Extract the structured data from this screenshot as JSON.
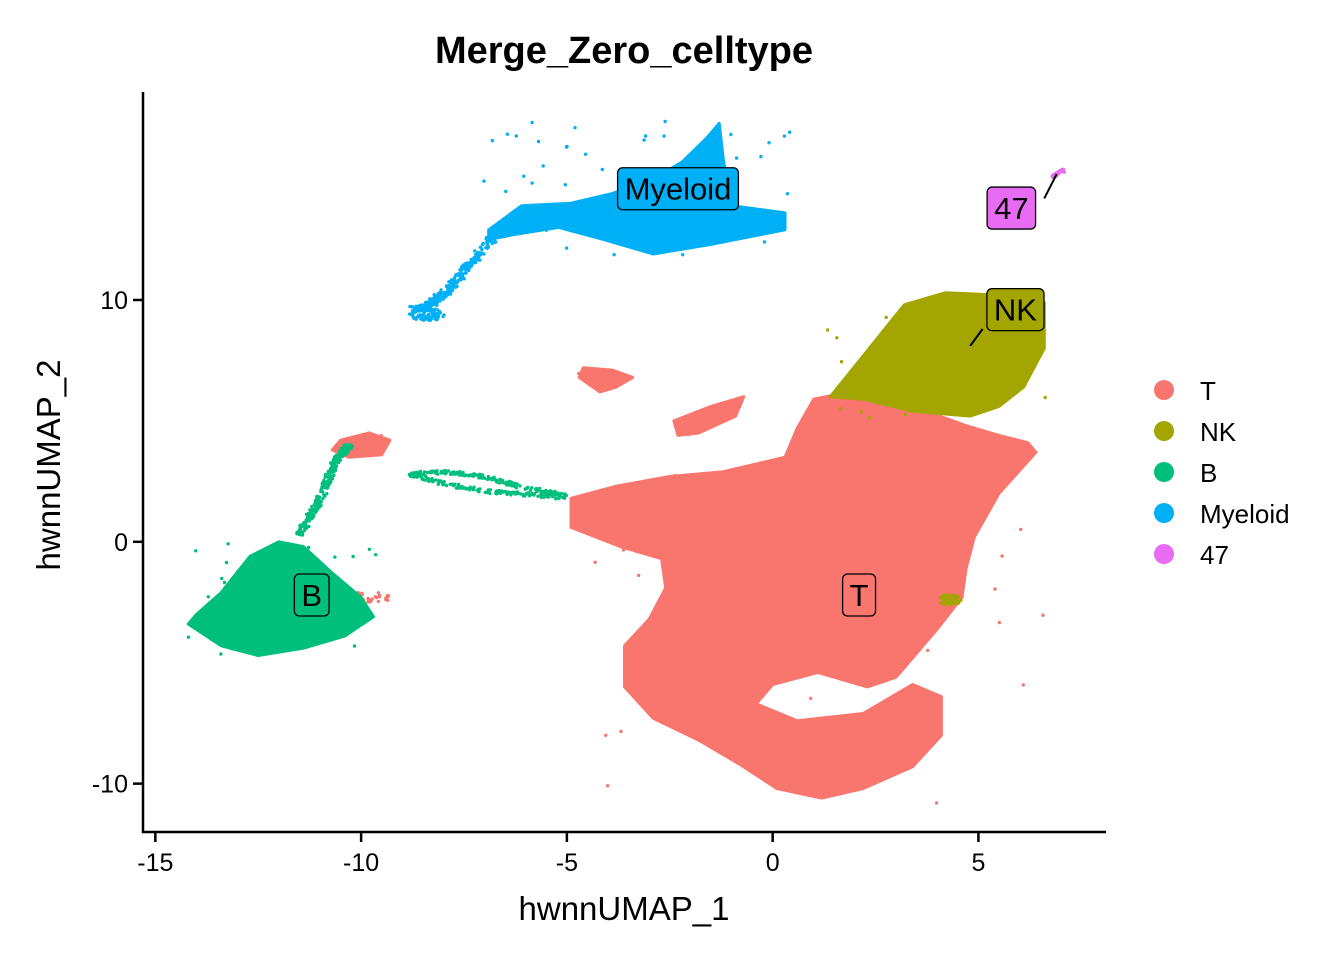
{
  "chart_data": {
    "type": "scatter",
    "title": "Merge_Zero_celltype",
    "xlabel": "hwnnUMAP_1",
    "ylabel": "hwnnUMAP_2",
    "xlim": [
      -15.3,
      8.1
    ],
    "ylim": [
      -12.0,
      18.6
    ],
    "xticks": [
      -15,
      -10,
      -5,
      0,
      5
    ],
    "yticks": [
      -10,
      0,
      10
    ],
    "grid": false,
    "legend_position": "right",
    "series": [
      {
        "name": "T",
        "color": "#F8766D"
      },
      {
        "name": "NK",
        "color": "#A3A500"
      },
      {
        "name": "B",
        "color": "#00BF7D"
      },
      {
        "name": "Myeloid",
        "color": "#00B0F6"
      },
      {
        "name": "47",
        "color": "#E76BF3"
      }
    ],
    "regions": [
      {
        "series": "T",
        "kind": "poly",
        "density": 5200,
        "pts": [
          [
            -4.9,
            1.8
          ],
          [
            -3.8,
            2.3
          ],
          [
            -2.5,
            2.7
          ],
          [
            -1.2,
            2.9
          ],
          [
            0.3,
            3.5
          ],
          [
            0.6,
            4.7
          ],
          [
            1.0,
            5.9
          ],
          [
            2.2,
            6.3
          ],
          [
            3.4,
            5.6
          ],
          [
            4.7,
            4.8
          ],
          [
            5.5,
            4.4
          ],
          [
            6.2,
            4.1
          ],
          [
            6.4,
            3.7
          ],
          [
            5.5,
            2.0
          ],
          [
            4.9,
            0.2
          ],
          [
            4.7,
            -1.1
          ],
          [
            4.6,
            -2.3
          ],
          [
            4.0,
            -3.6
          ],
          [
            3.4,
            -4.8
          ],
          [
            3.0,
            -5.6
          ],
          [
            2.3,
            -6.0
          ],
          [
            1.1,
            -5.4
          ],
          [
            0.0,
            -5.9
          ],
          [
            -0.4,
            -6.7
          ],
          [
            0.6,
            -7.4
          ],
          [
            2.2,
            -7.1
          ],
          [
            3.4,
            -5.9
          ],
          [
            4.1,
            -6.4
          ],
          [
            4.1,
            -8.0
          ],
          [
            3.4,
            -9.3
          ],
          [
            2.2,
            -10.2
          ],
          [
            1.2,
            -10.6
          ],
          [
            0.1,
            -10.2
          ],
          [
            -0.8,
            -9.2
          ],
          [
            -1.8,
            -8.2
          ],
          [
            -2.9,
            -7.3
          ],
          [
            -3.6,
            -6.0
          ],
          [
            -3.6,
            -4.3
          ],
          [
            -3.0,
            -3.2
          ],
          [
            -2.6,
            -1.9
          ],
          [
            -2.7,
            -0.7
          ],
          [
            -3.7,
            -0.2
          ],
          [
            -4.9,
            0.6
          ]
        ]
      },
      {
        "series": "T",
        "kind": "poly",
        "density": 80,
        "pts": [
          [
            -2.4,
            5.0
          ],
          [
            -1.5,
            5.6
          ],
          [
            -0.7,
            6.0
          ],
          [
            -0.9,
            5.2
          ],
          [
            -1.8,
            4.5
          ],
          [
            -2.3,
            4.4
          ]
        ]
      },
      {
        "series": "T",
        "kind": "poly",
        "density": 60,
        "pts": [
          [
            -4.6,
            7.2
          ],
          [
            -3.9,
            7.1
          ],
          [
            -3.4,
            6.8
          ],
          [
            -3.8,
            6.4
          ],
          [
            -4.2,
            6.2
          ],
          [
            -4.7,
            6.8
          ]
        ]
      },
      {
        "series": "T",
        "kind": "poly",
        "density": 140,
        "pts": [
          [
            -10.5,
            4.2
          ],
          [
            -9.8,
            4.5
          ],
          [
            -9.3,
            4.2
          ],
          [
            -9.5,
            3.6
          ],
          [
            -10.3,
            3.5
          ],
          [
            -10.7,
            3.8
          ]
        ]
      },
      {
        "series": "T",
        "kind": "ellipse",
        "density": 40,
        "cx": -9.9,
        "cy": -2.3,
        "rx": 0.7,
        "ry": 0.25
      },
      {
        "series": "NK",
        "kind": "poly",
        "density": 1800,
        "pts": [
          [
            1.4,
            6.0
          ],
          [
            2.3,
            7.9
          ],
          [
            3.2,
            9.8
          ],
          [
            4.2,
            10.3
          ],
          [
            5.5,
            10.2
          ],
          [
            6.6,
            9.9
          ],
          [
            6.6,
            8.0
          ],
          [
            6.1,
            6.4
          ],
          [
            5.5,
            5.6
          ],
          [
            4.8,
            5.2
          ],
          [
            3.4,
            5.4
          ],
          [
            2.2,
            5.9
          ]
        ]
      },
      {
        "series": "NK",
        "kind": "ellipse",
        "density": 60,
        "cx": 4.3,
        "cy": -2.4,
        "rx": 0.28,
        "ry": 0.22
      },
      {
        "series": "B",
        "kind": "poly",
        "density": 1800,
        "pts": [
          [
            -14.0,
            -3.0
          ],
          [
            -13.4,
            -2.1
          ],
          [
            -12.7,
            -0.6
          ],
          [
            -12.0,
            0.0
          ],
          [
            -11.4,
            -0.2
          ],
          [
            -10.7,
            -1.3
          ],
          [
            -10.0,
            -2.3
          ],
          [
            -9.7,
            -3.1
          ],
          [
            -10.4,
            -3.9
          ],
          [
            -11.4,
            -4.4
          ],
          [
            -12.5,
            -4.7
          ],
          [
            -13.4,
            -4.3
          ],
          [
            -14.2,
            -3.4
          ]
        ]
      },
      {
        "series": "B",
        "kind": "stroke",
        "density": 260,
        "width": 0.2,
        "pts": [
          [
            -11.5,
            0.3
          ],
          [
            -11.0,
            1.8
          ],
          [
            -10.6,
            3.4
          ],
          [
            -10.3,
            4.0
          ]
        ]
      },
      {
        "series": "B",
        "kind": "stroke",
        "density": 340,
        "width": 0.15,
        "pts": [
          [
            -5.0,
            1.9
          ],
          [
            -6.2,
            2.3
          ],
          [
            -7.0,
            2.7
          ],
          [
            -8.0,
            2.9
          ],
          [
            -8.8,
            2.8
          ],
          [
            -8.0,
            2.4
          ],
          [
            -7.0,
            2.1
          ],
          [
            -6.2,
            2.0
          ],
          [
            -5.0,
            1.8
          ]
        ]
      },
      {
        "series": "Myeloid",
        "kind": "poly",
        "density": 1500,
        "pts": [
          [
            -6.9,
            12.9
          ],
          [
            -6.1,
            13.9
          ],
          [
            -4.9,
            14.0
          ],
          [
            -3.9,
            14.4
          ],
          [
            -2.9,
            15.0
          ],
          [
            -2.2,
            15.7
          ],
          [
            -1.6,
            16.7
          ],
          [
            -1.3,
            17.3
          ],
          [
            -1.2,
            15.8
          ],
          [
            -1.0,
            13.9
          ],
          [
            0.3,
            13.6
          ],
          [
            0.3,
            12.9
          ],
          [
            -1.5,
            12.3
          ],
          [
            -2.9,
            11.9
          ],
          [
            -4.1,
            12.5
          ],
          [
            -5.2,
            13.0
          ],
          [
            -6.3,
            12.7
          ],
          [
            -6.9,
            12.5
          ]
        ]
      },
      {
        "series": "Myeloid",
        "kind": "stroke",
        "density": 280,
        "width": 0.25,
        "pts": [
          [
            -6.8,
            12.6
          ],
          [
            -7.4,
            11.4
          ],
          [
            -7.9,
            10.4
          ],
          [
            -8.4,
            9.7
          ],
          [
            -8.7,
            9.6
          ]
        ]
      },
      {
        "series": "Myeloid",
        "kind": "ellipse",
        "density": 80,
        "cx": -8.4,
        "cy": 9.4,
        "rx": 0.42,
        "ry": 0.28
      },
      {
        "series": "47",
        "kind": "stroke",
        "density": 40,
        "width": 0.1,
        "pts": [
          [
            6.8,
            15.1
          ],
          [
            7.1,
            15.4
          ]
        ]
      }
    ],
    "cluster_labels": [
      {
        "text": "Myeloid",
        "x": -2.3,
        "y": 14.6,
        "fill": "#00B0F6"
      },
      {
        "text": "47",
        "x": 5.8,
        "y": 13.8,
        "fill": "#E76BF3"
      },
      {
        "text": "NK",
        "x": 5.9,
        "y": 9.6,
        "fill": "#A3A500"
      },
      {
        "text": "B",
        "x": -11.2,
        "y": -2.2,
        "fill": "#00BF7D"
      },
      {
        "text": "T",
        "x": 2.1,
        "y": -2.2,
        "fill": "#F8766D"
      }
    ],
    "label_pointers": [
      {
        "from": [
          6.6,
          14.2
        ],
        "to": [
          6.9,
          15.2
        ]
      },
      {
        "from": [
          5.1,
          8.8
        ],
        "to": [
          4.8,
          8.1
        ]
      }
    ]
  }
}
